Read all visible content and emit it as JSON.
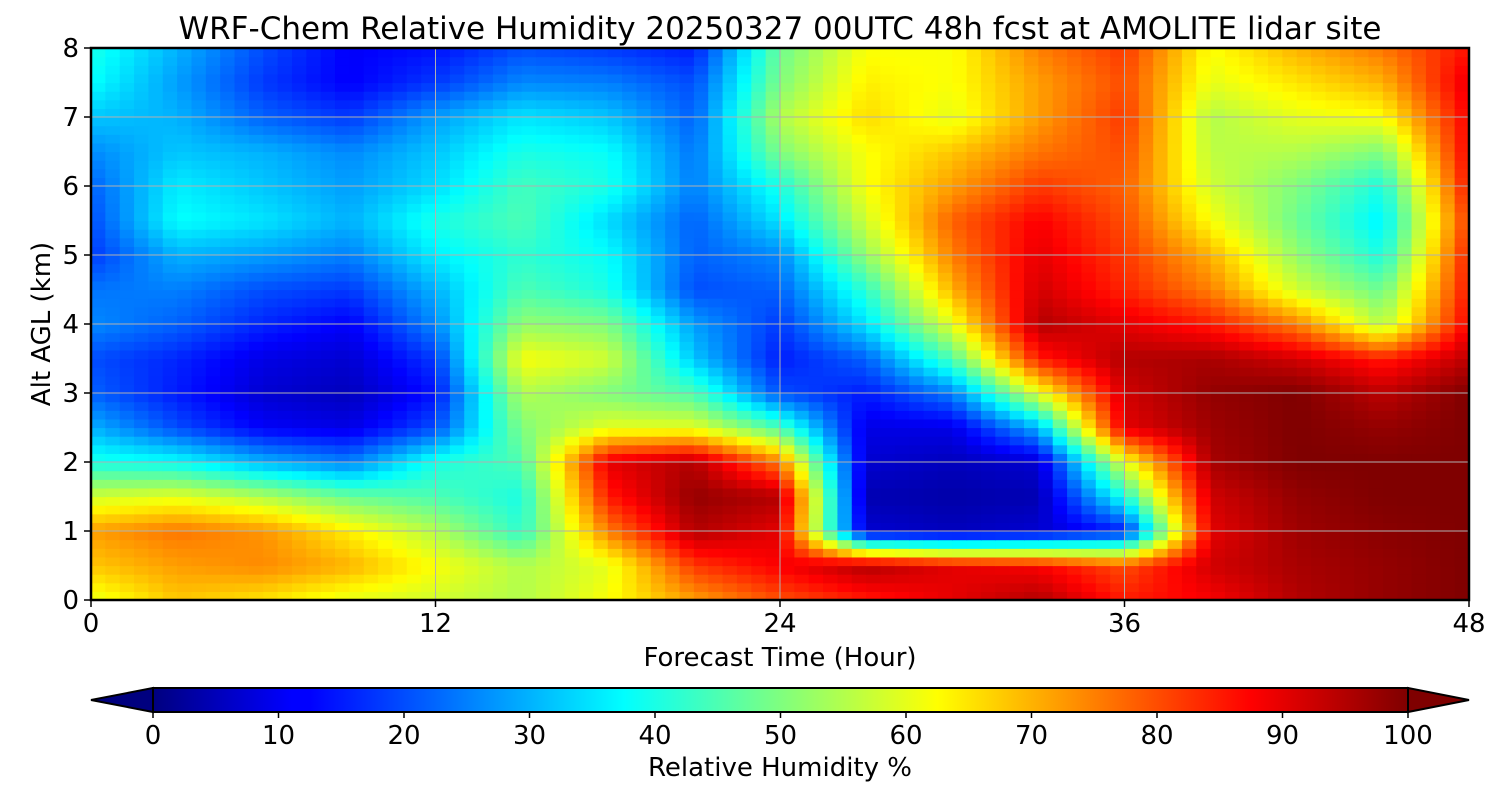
{
  "chart_data": {
    "type": "heatmap",
    "title": "WRF-Chem Relative Humidity 20250327 00UTC 48h fcst at AMOLITE lidar site",
    "xlabel": "Forecast Time (Hour)",
    "ylabel": "Alt AGL (km)",
    "xlim": [
      0,
      48
    ],
    "ylim": [
      0,
      8
    ],
    "x_ticks": [
      0,
      12,
      24,
      36,
      48
    ],
    "y_ticks": [
      0,
      1,
      2,
      3,
      4,
      5,
      6,
      7,
      8
    ],
    "grid": true,
    "colormap": "jet",
    "colorbar": {
      "label": "Relative Humidity %",
      "orientation": "horizontal",
      "placement": "bottom",
      "range": [
        0,
        100
      ],
      "ticks": [
        0,
        10,
        20,
        30,
        40,
        50,
        60,
        70,
        80,
        90,
        100
      ],
      "extend": "both"
    },
    "x": [
      0,
      3,
      6,
      9,
      12,
      15,
      18,
      21,
      24,
      27,
      30,
      33,
      36,
      39,
      42,
      45,
      48
    ],
    "y": [
      0,
      0.5,
      1,
      1.5,
      2,
      2.5,
      3,
      3.5,
      4,
      4.5,
      5,
      5.5,
      6,
      6.5,
      7,
      7.5,
      8
    ],
    "z": [
      [
        60,
        68,
        65,
        60,
        58,
        55,
        62,
        72,
        80,
        85,
        90,
        95,
        85,
        88,
        95,
        98,
        100
      ],
      [
        68,
        72,
        74,
        70,
        62,
        55,
        60,
        82,
        88,
        95,
        90,
        88,
        80,
        92,
        96,
        98,
        100
      ],
      [
        72,
        76,
        73,
        64,
        55,
        42,
        75,
        95,
        90,
        8,
        6,
        8,
        15,
        90,
        97,
        99,
        100
      ],
      [
        58,
        60,
        55,
        48,
        45,
        40,
        85,
        98,
        95,
        5,
        4,
        5,
        40,
        92,
        98,
        100,
        100
      ],
      [
        40,
        38,
        30,
        25,
        40,
        45,
        90,
        95,
        75,
        8,
        6,
        8,
        60,
        96,
        100,
        100,
        100
      ],
      [
        30,
        20,
        12,
        10,
        20,
        50,
        60,
        60,
        45,
        10,
        10,
        30,
        90,
        97,
        100,
        98,
        100
      ],
      [
        22,
        15,
        8,
        6,
        14,
        55,
        50,
        45,
        20,
        15,
        25,
        60,
        92,
        98,
        100,
        94,
        100
      ],
      [
        20,
        16,
        10,
        8,
        18,
        62,
        58,
        32,
        15,
        22,
        45,
        85,
        95,
        96,
        92,
        85,
        94
      ],
      [
        26,
        22,
        16,
        12,
        26,
        52,
        50,
        28,
        18,
        35,
        60,
        95,
        90,
        85,
        75,
        55,
        88
      ],
      [
        24,
        25,
        20,
        18,
        30,
        45,
        40,
        20,
        22,
        42,
        70,
        92,
        84,
        75,
        58,
        48,
        86
      ],
      [
        18,
        30,
        28,
        25,
        36,
        42,
        38,
        22,
        26,
        52,
        75,
        90,
        82,
        70,
        52,
        40,
        85
      ],
      [
        20,
        38,
        35,
        30,
        40,
        45,
        34,
        22,
        35,
        58,
        78,
        88,
        80,
        62,
        48,
        36,
        82
      ],
      [
        22,
        36,
        32,
        28,
        34,
        44,
        40,
        25,
        40,
        62,
        72,
        82,
        78,
        58,
        50,
        40,
        86
      ],
      [
        26,
        32,
        30,
        26,
        32,
        40,
        38,
        24,
        50,
        62,
        68,
        76,
        80,
        56,
        55,
        50,
        88
      ],
      [
        32,
        30,
        22,
        18,
        28,
        35,
        32,
        22,
        55,
        66,
        60,
        72,
        82,
        55,
        60,
        62,
        88
      ],
      [
        38,
        28,
        18,
        12,
        18,
        26,
        25,
        20,
        50,
        64,
        62,
        72,
        80,
        60,
        65,
        70,
        90
      ],
      [
        40,
        30,
        20,
        12,
        14,
        20,
        18,
        15,
        48,
        62,
        62,
        75,
        82,
        62,
        70,
        76,
        86
      ]
    ]
  }
}
